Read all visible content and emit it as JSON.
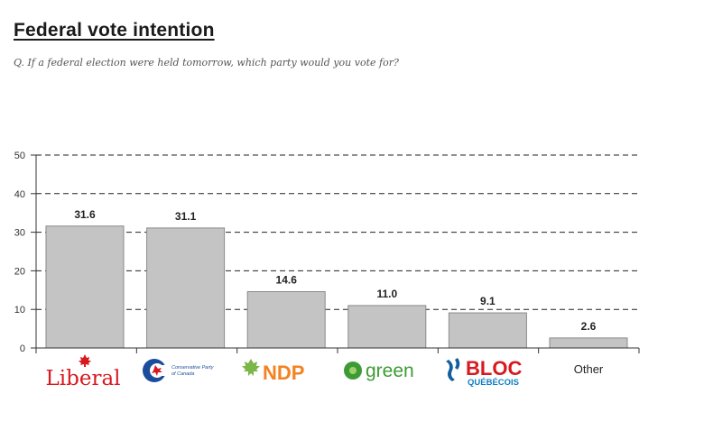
{
  "title": "Federal vote intention",
  "question": "Q. If a federal election were held tomorrow, which party would you vote for?",
  "colors": {
    "bar_fill": "#c4c4c4",
    "bar_stroke": "#8a8a8a",
    "liberal_red": "#d71920",
    "conservative_blue": "#1a4e9c",
    "ndp_orange": "#f58220",
    "green_green": "#3d9b35",
    "bloc_blue": "#0f7fc2"
  },
  "logos": {
    "liberal": "Liberal",
    "conservative_line1": "Conservative Party",
    "conservative_line2": "of Canada",
    "ndp": "NDP",
    "green": "green",
    "bloc_line1": "BLOC",
    "bloc_line2": "QUÉBÉCOIS"
  },
  "chart_data": {
    "type": "bar",
    "categories": [
      "Liberal",
      "Conservative Party of Canada",
      "NDP",
      "green",
      "BLOC QUÉBÉCOIS",
      "Other"
    ],
    "values": [
      31.6,
      31.1,
      14.6,
      11.0,
      9.1,
      2.6
    ],
    "value_labels": [
      "31.6",
      "31.1",
      "14.6",
      "11.0",
      "9.1",
      "2.6"
    ],
    "yticks": [
      "0",
      "10",
      "20",
      "30",
      "40",
      "50"
    ],
    "ylim": [
      0,
      50
    ],
    "grid": "dashed horizontal",
    "legend": "none"
  }
}
